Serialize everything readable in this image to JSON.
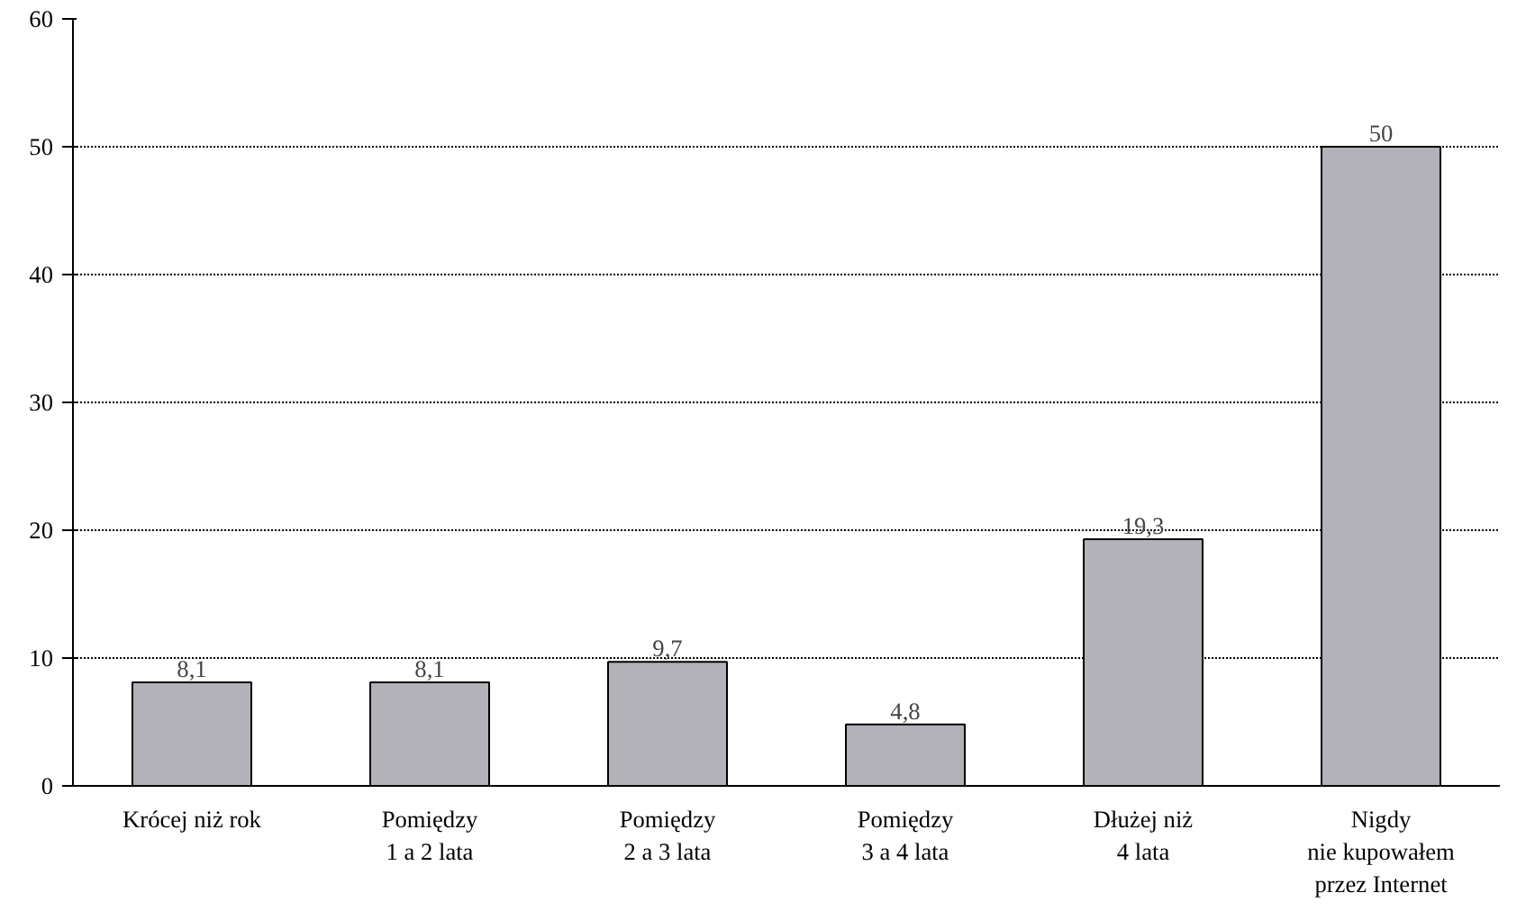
{
  "chart_data": {
    "type": "bar",
    "categories": [
      "Krócej niż rok",
      "Pomiędzy\n1 a 2 lata",
      "Pomiędzy\n2 a 3 lata",
      "Pomiędzy\n3 a 4 lata",
      "Dłużej niż\n4 lata",
      "Nigdy\nnie kupowałem\nprzez Internet"
    ],
    "values": [
      8.1,
      8.1,
      9.7,
      4.8,
      19.3,
      50
    ],
    "value_labels": [
      "8,1",
      "8,1",
      "9,7",
      "4,8",
      "19,3",
      "50"
    ],
    "color": "#b2b2b8",
    "ylim": [
      0,
      60
    ],
    "yticks": [
      0,
      10,
      20,
      30,
      40,
      50,
      60
    ],
    "grid": "y"
  }
}
